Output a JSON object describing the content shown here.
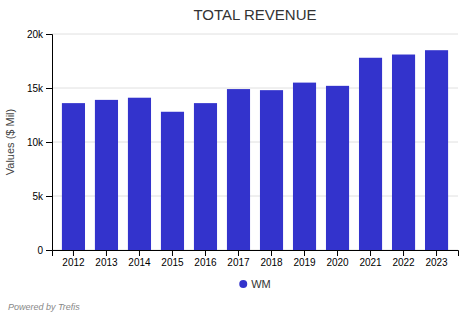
{
  "chart_data": {
    "type": "bar",
    "title": "TOTAL REVENUE",
    "ylabel": "Values ($ Mil)",
    "categories": [
      "2012",
      "2013",
      "2014",
      "2015",
      "2016",
      "2017",
      "2018",
      "2019",
      "2020",
      "2021",
      "2022",
      "2023"
    ],
    "series": [
      {
        "name": "WM",
        "color": "#3333cc",
        "values": [
          13600,
          13900,
          14100,
          12800,
          13600,
          14900,
          14800,
          15500,
          15200,
          17800,
          18100,
          18500
        ]
      }
    ],
    "ylim": [
      0,
      20000
    ],
    "yticks": [
      0,
      {
        "value": 5000,
        "label": "5k"
      },
      {
        "value": 10000,
        "label": "10k"
      },
      {
        "value": 15000,
        "label": "15k"
      },
      {
        "value": 20000,
        "label": "20k"
      }
    ],
    "grid": true,
    "legend": "bottom",
    "annotations": [
      "Powered by Trefis"
    ]
  }
}
